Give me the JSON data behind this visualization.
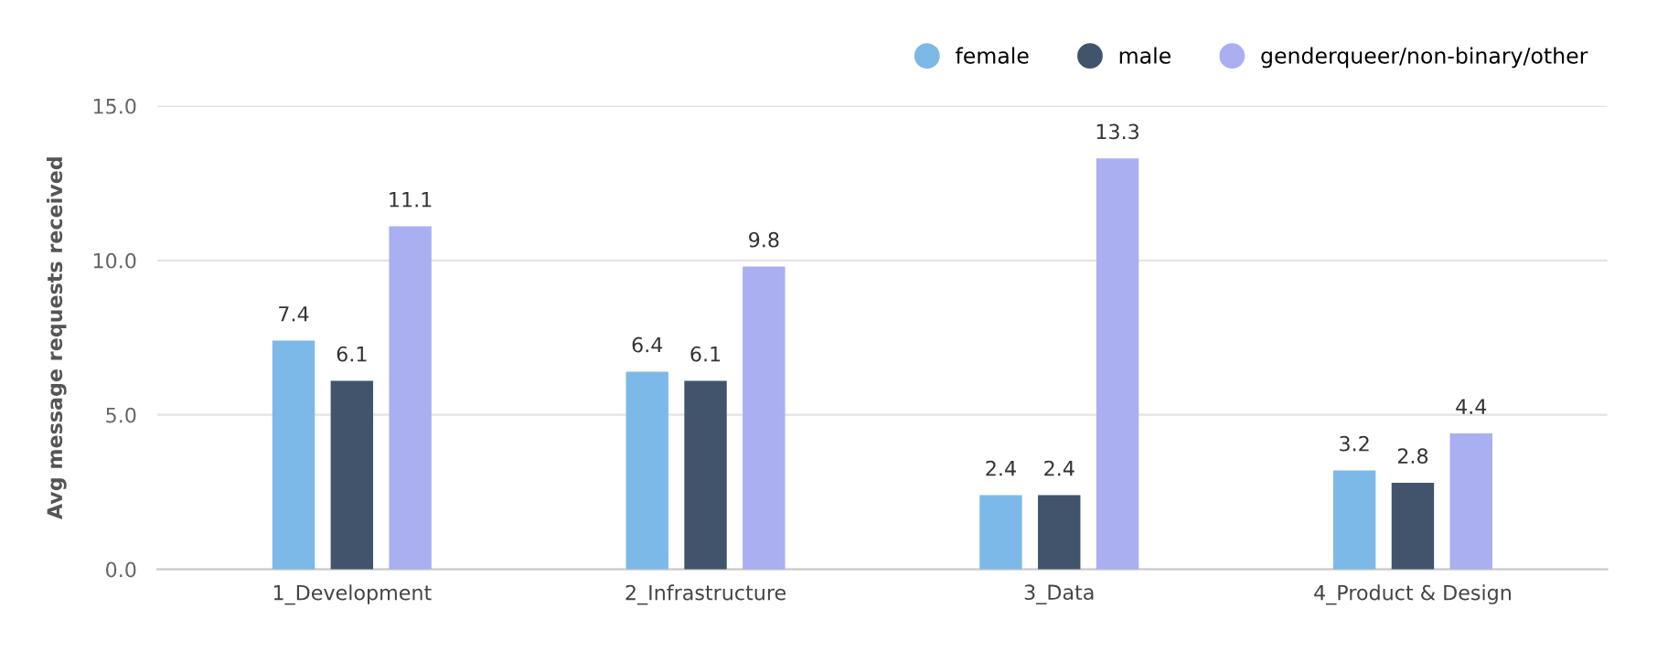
{
  "chart_data": {
    "type": "bar",
    "ylabel": "Avg message requests received",
    "categories": [
      "1_Development",
      "2_Infrastructure",
      "3_Data",
      "4_Product & Design"
    ],
    "series": [
      {
        "name": "female",
        "color": "#7cb9e8",
        "values": [
          7.4,
          6.4,
          2.4,
          3.2
        ]
      },
      {
        "name": "male",
        "color": "#41546c",
        "values": [
          6.1,
          6.1,
          2.4,
          2.8
        ]
      },
      {
        "name": "genderqueer/non-binary/other",
        "color": "#a9aff0",
        "values": [
          11.1,
          9.8,
          13.3,
          4.4
        ]
      }
    ],
    "ylim": [
      0,
      15
    ],
    "yticks": [
      {
        "value": 0,
        "label": "0.0"
      },
      {
        "value": 5,
        "label": "5.0"
      },
      {
        "value": 10,
        "label": "10.0"
      },
      {
        "value": 15,
        "label": "15.0"
      }
    ],
    "grid": "y",
    "legend": "top right",
    "data_labels": true
  }
}
